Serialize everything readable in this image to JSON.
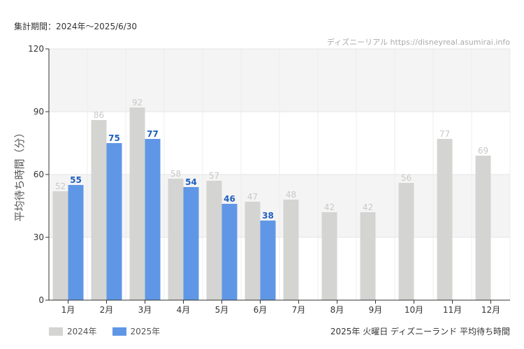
{
  "header": {
    "period": "集計期間：2024年～2025/6/30"
  },
  "footer": {
    "title": "2025年 火曜日 ディズニーランド 平均待ち時間"
  },
  "colors": {
    "series_2024": "#d4d4d2",
    "series_2025": "#5f97e6",
    "label_2024": "#c8c8c6",
    "label_2025": "#1f5fbf",
    "band": "#f4f4f4"
  },
  "chart_data": {
    "type": "bar",
    "title": "",
    "watermark": "ディズニーリアル https://disneyreal.asumirai.info",
    "xlabel": "",
    "ylabel": "平均待ち時間（分）",
    "ylim": [
      0,
      120
    ],
    "yticks": [
      0,
      30,
      60,
      90,
      120
    ],
    "grid": true,
    "legend_position": "bottom-left",
    "categories": [
      "1月",
      "2月",
      "3月",
      "4月",
      "5月",
      "6月",
      "7月",
      "8月",
      "9月",
      "10月",
      "11月",
      "12月"
    ],
    "series": [
      {
        "name": "2024年",
        "values": [
          52,
          86,
          92,
          58,
          57,
          47,
          48,
          42,
          42,
          56,
          77,
          69
        ]
      },
      {
        "name": "2025年",
        "values": [
          55,
          75,
          77,
          54,
          46,
          38,
          null,
          null,
          null,
          null,
          null,
          null
        ]
      }
    ]
  }
}
